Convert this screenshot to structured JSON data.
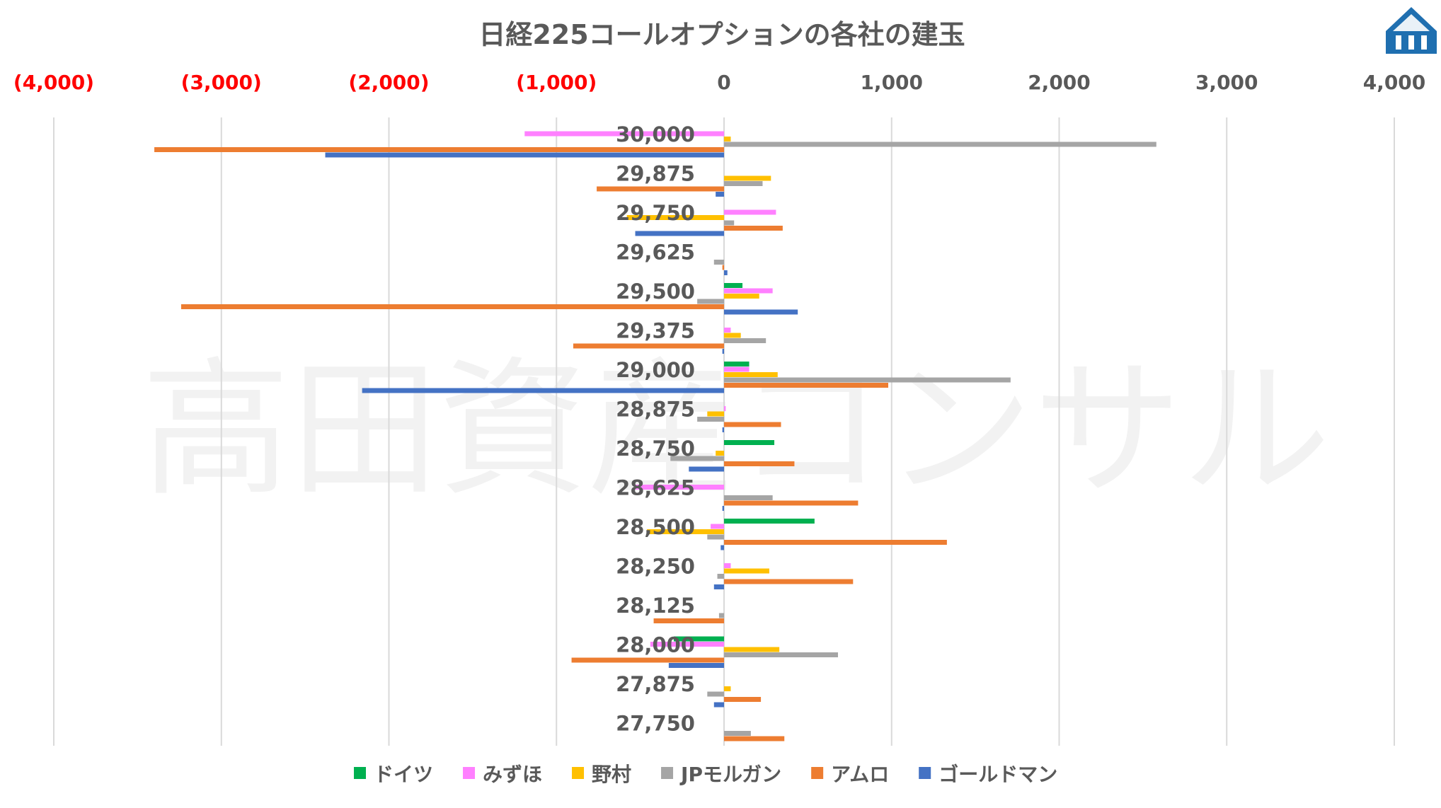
{
  "chart_data": {
    "type": "bar",
    "orientation": "horizontal",
    "title": "日経225コールオプションの各社の建玉",
    "watermark": "高田資産コンサル",
    "xlim": [
      -4000,
      4000
    ],
    "x_ticks": [
      -4000,
      -3000,
      -2000,
      -1000,
      0,
      1000,
      2000,
      3000,
      4000
    ],
    "x_tick_labels": [
      "(4,000)",
      "(3,000)",
      "(2,000)",
      "(1,000)",
      "0",
      "1,000",
      "2,000",
      "3,000",
      "4,000"
    ],
    "negative_tick_color": "#ff0000",
    "positive_tick_color": "#595959",
    "grid": true,
    "legend_position": "bottom",
    "categories": [
      "30,000",
      "29,875",
      "29,750",
      "29,625",
      "29,500",
      "29,375",
      "29,000",
      "28,875",
      "28,750",
      "28,625",
      "28,500",
      "28,250",
      "28,125",
      "28,000",
      "27,875",
      "27,750"
    ],
    "series": [
      {
        "name": "ドイツ",
        "color": "#00b050",
        "values": [
          0,
          0,
          0,
          0,
          110,
          0,
          150,
          0,
          300,
          0,
          540,
          0,
          0,
          -300,
          0,
          0
        ]
      },
      {
        "name": "みずほ",
        "color": "#ff80ff",
        "values": [
          -1190,
          0,
          310,
          0,
          290,
          40,
          150,
          10,
          0,
          -530,
          -80,
          40,
          0,
          -440,
          0,
          0
        ]
      },
      {
        "name": "野村",
        "color": "#ffc000",
        "values": [
          40,
          280,
          -580,
          0,
          210,
          100,
          320,
          -100,
          -50,
          0,
          -460,
          270,
          0,
          330,
          40,
          0
        ]
      },
      {
        "name": "JPモルガン",
        "color": "#a5a5a5",
        "values": [
          2580,
          230,
          60,
          -60,
          -160,
          250,
          1710,
          -160,
          -320,
          290,
          -100,
          -40,
          -30,
          680,
          -100,
          160
        ]
      },
      {
        "name": "アムロ",
        "color": "#ed7d31",
        "values": [
          -3400,
          -760,
          350,
          -10,
          -3240,
          -900,
          980,
          340,
          420,
          800,
          1330,
          770,
          -420,
          -910,
          220,
          360
        ]
      },
      {
        "name": "ゴールドマン",
        "color": "#4472c4",
        "values": [
          -2380,
          -50,
          -530,
          20,
          440,
          -10,
          -2160,
          -10,
          -210,
          -10,
          -20,
          -60,
          0,
          -330,
          -60,
          0
        ]
      }
    ]
  }
}
